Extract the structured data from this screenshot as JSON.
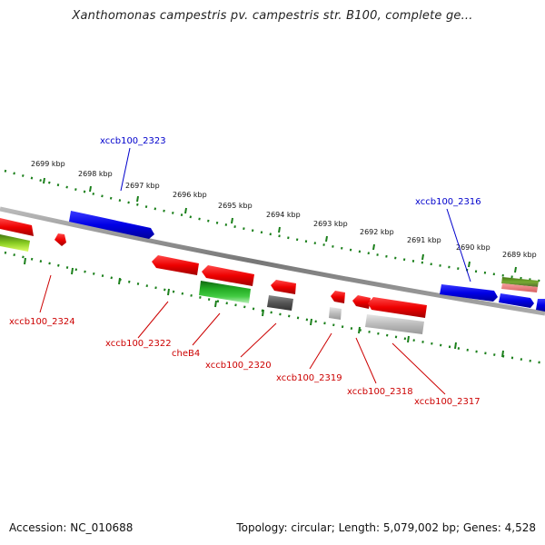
{
  "title": "Xanthomonas campestris pv. campestris str. B100, complete ge...",
  "footer": {
    "accession": "Accession: NC_010688",
    "summary": "Topology: circular; Length: 5,079,002 bp; Genes: 4,528"
  },
  "colors": {
    "forward": "#0000ee",
    "reverse": "#ee0000",
    "tick": "#1a7f1a",
    "backbone": "#888888",
    "label_forward": "#0000cc",
    "label_reverse": "#cc0000"
  },
  "ticks": [
    "2699 kbp",
    "2698 kbp",
    "2697 kbp",
    "2696 kbp",
    "2695 kbp",
    "2694 kbp",
    "2693 kbp",
    "2692 kbp",
    "2691 kbp",
    "2690 kbp",
    "2689 kbp"
  ],
  "genes": [
    {
      "name": "xccb100_2323",
      "strand": "forward",
      "color": "#0000ee"
    },
    {
      "name": "xccb100_2316",
      "strand": "forward",
      "color": "#0000ee"
    },
    {
      "name": "xccb100_2324",
      "strand": "reverse",
      "color": "#ee0000"
    },
    {
      "name": "xccb100_2322",
      "strand": "reverse",
      "color": "#ee0000"
    },
    {
      "name": "cheB4",
      "strand": "reverse",
      "color": "#22aa22"
    },
    {
      "name": "xccb100_2320",
      "strand": "reverse",
      "color": "#555555"
    },
    {
      "name": "xccb100_2319",
      "strand": "reverse",
      "color": "#bbbbbb"
    },
    {
      "name": "xccb100_2318",
      "strand": "reverse",
      "color": "#ee0000"
    },
    {
      "name": "xccb100_2317",
      "strand": "reverse",
      "color": "#bbbbbb"
    }
  ]
}
